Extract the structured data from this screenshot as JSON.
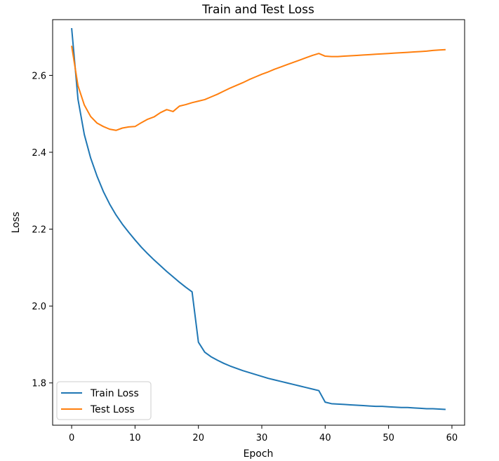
{
  "chart_data": {
    "type": "line",
    "title": "Train and Test Loss",
    "xlabel": "Epoch",
    "ylabel": "Loss",
    "xlim": [
      -3,
      62
    ],
    "ylim": [
      1.69,
      2.745
    ],
    "xticks": [
      0,
      10,
      20,
      30,
      40,
      50,
      60
    ],
    "yticks": [
      1.8,
      2.0,
      2.2,
      2.4,
      2.6
    ],
    "xtick_labels": [
      "0",
      "10",
      "20",
      "30",
      "40",
      "50",
      "60"
    ],
    "ytick_labels": [
      "1.8",
      "2.0",
      "2.2",
      "2.4",
      "2.6"
    ],
    "grid": false,
    "legend_position": "lower-left",
    "x": [
      0,
      1,
      2,
      3,
      4,
      5,
      6,
      7,
      8,
      9,
      10,
      11,
      12,
      13,
      14,
      15,
      16,
      17,
      18,
      19,
      20,
      21,
      22,
      23,
      24,
      25,
      26,
      27,
      28,
      29,
      30,
      31,
      32,
      33,
      34,
      35,
      36,
      37,
      38,
      39,
      40,
      41,
      42,
      43,
      44,
      45,
      46,
      47,
      48,
      49,
      50,
      51,
      52,
      53,
      54,
      55,
      56,
      57,
      58,
      59
    ],
    "series": [
      {
        "name": "Train Loss",
        "color": "#1f77b4",
        "values": [
          2.723,
          2.538,
          2.446,
          2.385,
          2.338,
          2.298,
          2.265,
          2.237,
          2.213,
          2.192,
          2.172,
          2.153,
          2.136,
          2.12,
          2.105,
          2.09,
          2.076,
          2.062,
          2.049,
          2.037,
          1.906,
          1.88,
          1.868,
          1.859,
          1.851,
          1.844,
          1.838,
          1.832,
          1.827,
          1.822,
          1.817,
          1.812,
          1.808,
          1.804,
          1.8,
          1.796,
          1.792,
          1.788,
          1.784,
          1.78,
          1.75,
          1.746,
          1.745,
          1.744,
          1.743,
          1.742,
          1.741,
          1.74,
          1.739,
          1.739,
          1.738,
          1.737,
          1.736,
          1.736,
          1.735,
          1.734,
          1.733,
          1.733,
          1.732,
          1.731
        ]
      },
      {
        "name": "Test Loss",
        "color": "#ff7f0e",
        "values": [
          2.677,
          2.573,
          2.523,
          2.493,
          2.476,
          2.467,
          2.46,
          2.457,
          2.463,
          2.466,
          2.467,
          2.477,
          2.486,
          2.492,
          2.503,
          2.511,
          2.506,
          2.52,
          2.524,
          2.529,
          2.533,
          2.537,
          2.544,
          2.551,
          2.559,
          2.567,
          2.574,
          2.581,
          2.589,
          2.596,
          2.603,
          2.609,
          2.616,
          2.622,
          2.628,
          2.634,
          2.64,
          2.646,
          2.652,
          2.657,
          2.65,
          2.649,
          2.649,
          2.65,
          2.651,
          2.652,
          2.653,
          2.654,
          2.655,
          2.656,
          2.657,
          2.658,
          2.659,
          2.66,
          2.661,
          2.662,
          2.663,
          2.665,
          2.666,
          2.667
        ]
      }
    ]
  }
}
